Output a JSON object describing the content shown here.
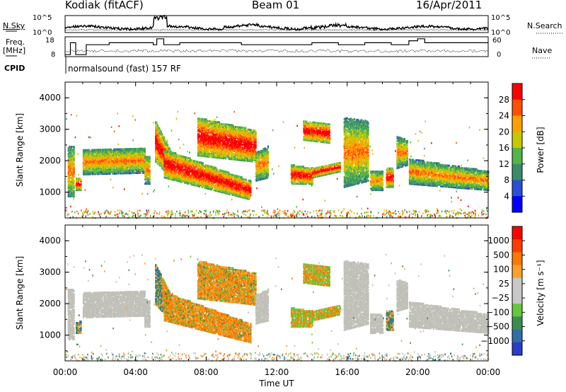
{
  "header": {
    "station": "Kodiak (fitACF)",
    "beam": "Beam 01",
    "date": "16/Apr/2011"
  },
  "top_panel": {
    "left_label": "N.Sky",
    "right_label": "N.Search",
    "left_ticks": [
      "10^5",
      "10^0"
    ],
    "right_ticks": [
      "10^5",
      "10^0"
    ]
  },
  "freq_panel": {
    "left_label_line1": "Freq.",
    "left_label_line2": "[MHz]",
    "right_label": "Nave",
    "left_ticks": [
      "18",
      "8"
    ],
    "right_ticks": [
      "60",
      "0"
    ]
  },
  "cpid": {
    "label": "CPID",
    "text": "normalsound (fast) 157 RF"
  },
  "colors": {
    "power_scale": [
      "#0000ff",
      "#2a4fd6",
      "#3c8c6a",
      "#52b44a",
      "#c8c800",
      "#ffa000",
      "#ff5000",
      "#ff0000"
    ],
    "velocity_scale": [
      "#2a3cc8",
      "#2f6fa8",
      "#3c8c50",
      "#64c83c",
      "#c8c8c8",
      "#c8c8c8",
      "#ffa028",
      "#ff7800",
      "#ff3c00",
      "#ff0000"
    ],
    "ground_scatter": "#c0c0b8"
  },
  "chart_data": [
    {
      "type": "line",
      "name": "noise-panel",
      "ylabel": "N.Sky",
      "y2label": "N.Search",
      "yticks": [
        "10^5",
        "10^0"
      ],
      "y2ticks": [
        "10^5",
        "10^0"
      ],
      "xlim": [
        0,
        24
      ]
    },
    {
      "type": "line",
      "name": "freq-nave-panel",
      "ylabel": "Freq. [MHz]",
      "y2label": "Nave",
      "yticks": [
        "18",
        "8"
      ],
      "y2ticks": [
        "60",
        "0"
      ],
      "xlim": [
        0,
        24
      ]
    },
    {
      "type": "heatmap",
      "name": "power-panel",
      "ylabel": "Slant Range [km]",
      "xlim": [
        0,
        24
      ],
      "ylim": [
        180,
        4500
      ],
      "yticks": [
        "1000",
        "2000",
        "3000",
        "4000"
      ],
      "colorbar": {
        "label": "Power [dB]",
        "ticks": [
          "4",
          "8",
          "12",
          "16",
          "20",
          "24",
          "28"
        ],
        "range": [
          0,
          30
        ]
      }
    },
    {
      "type": "heatmap",
      "name": "velocity-panel",
      "ylabel": "Slant Range [km]",
      "xlabel": "Time UT",
      "xlim": [
        0,
        24
      ],
      "ylim": [
        180,
        4500
      ],
      "yticks": [
        "1000",
        "2000",
        "3000",
        "4000"
      ],
      "xticks": [
        "00:00",
        "04:00",
        "08:00",
        "12:00",
        "16:00",
        "20:00",
        "00:00"
      ],
      "colorbar": {
        "label": "Velocity [m s⁻¹]",
        "ticks": [
          "1000",
          "500",
          "100",
          "25",
          "−25",
          "−100",
          "−500",
          "−1000"
        ]
      }
    }
  ]
}
